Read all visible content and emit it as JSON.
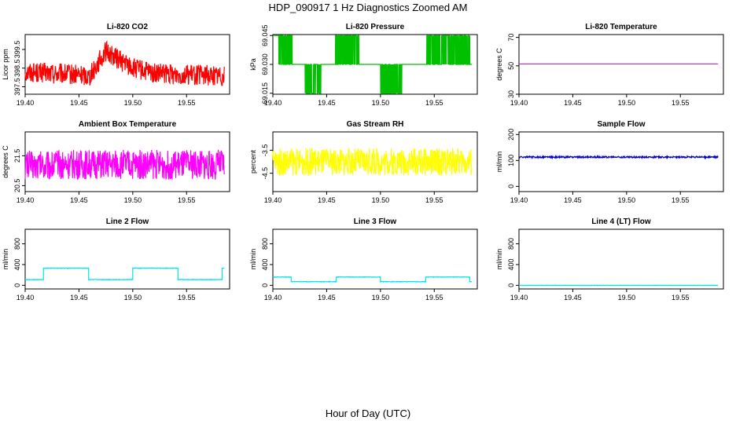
{
  "title": "HDP_090917  1 Hz Diagnostics Zoomed AM",
  "xlabel": "Hour of Day (UTC)",
  "chart_data": [
    {
      "type": "line",
      "title": "Li-820 CO2",
      "ylabel": "Licor ppm",
      "color": "#ff0000",
      "xlim": [
        19.4,
        19.59
      ],
      "ylim": [
        397.1,
        400.3
      ],
      "xticks": [
        "19.40",
        "19.45",
        "19.50",
        "19.55"
      ],
      "yticks": [
        "397.5",
        "398.5",
        "399.5"
      ],
      "series": {
        "x_range": [
          19.4,
          19.585
        ],
        "level_points": [
          [
            19.4,
            398.3
          ],
          [
            19.46,
            398.1
          ],
          [
            19.475,
            399.4
          ],
          [
            19.5,
            398.5
          ],
          [
            19.52,
            398.2
          ],
          [
            19.585,
            398.1
          ]
        ],
        "noise": 0.55,
        "style": "noisy"
      }
    },
    {
      "type": "line",
      "title": "Li-820 Pressure",
      "ylabel": "kPa",
      "color": "#00c000",
      "xlim": [
        19.4,
        19.59
      ],
      "ylim": [
        69.0145,
        69.0455
      ],
      "xticks": [
        "19.40",
        "19.45",
        "19.50",
        "19.55"
      ],
      "yticks": [
        "69.015",
        "69.030",
        "69.045"
      ],
      "series": {
        "x_range": [
          19.4,
          19.585
        ],
        "levels": [
          69.015,
          69.03,
          69.045
        ],
        "style": "flicker"
      }
    },
    {
      "type": "line",
      "title": "Li-820 Temperature",
      "ylabel": "degrees C",
      "color": "#ff00ff",
      "xlim": [
        19.4,
        19.59
      ],
      "ylim": [
        30,
        72
      ],
      "xticks": [
        "19.40",
        "19.45",
        "19.50",
        "19.55"
      ],
      "yticks": [
        "30",
        "50",
        "70"
      ],
      "series": {
        "x_range": [
          19.4,
          19.585
        ],
        "level_points": [
          [
            19.4,
            51.3
          ],
          [
            19.585,
            51.3
          ]
        ],
        "noise": 0,
        "style": "flat"
      }
    },
    {
      "type": "line",
      "title": "Ambient Box Temperature",
      "ylabel": "degrees C",
      "color": "#ff00ff",
      "xlim": [
        19.4,
        19.59
      ],
      "ylim": [
        20.3,
        22.3
      ],
      "xticks": [
        "19.40",
        "19.45",
        "19.50",
        "19.55"
      ],
      "yticks": [
        "20.5",
        "21.5"
      ],
      "series": {
        "x_range": [
          19.4,
          19.585
        ],
        "level_points": [
          [
            19.4,
            21.2
          ],
          [
            19.585,
            21.2
          ]
        ],
        "noise": 0.5,
        "style": "noisy"
      }
    },
    {
      "type": "line",
      "title": "Gas Stream RH",
      "ylabel": "percent",
      "color": "#ffff00",
      "xlim": [
        19.4,
        19.59
      ],
      "ylim": [
        -5.3,
        -2.7
      ],
      "xticks": [
        "19.40",
        "19.45",
        "19.50",
        "19.55"
      ],
      "yticks": [
        "-3.5",
        "-4.5"
      ],
      "series": {
        "x_range": [
          19.4,
          19.585
        ],
        "level_points": [
          [
            19.4,
            -4.0
          ],
          [
            19.585,
            -4.0
          ]
        ],
        "noise": 0.6,
        "style": "noisy"
      }
    },
    {
      "type": "line",
      "title": "Sample Flow",
      "ylabel": "ml/min",
      "color": "#0000cc",
      "xlim": [
        19.4,
        19.59
      ],
      "ylim": [
        -20,
        210
      ],
      "xticks": [
        "19.40",
        "19.45",
        "19.50",
        "19.55"
      ],
      "yticks": [
        "0",
        "100",
        "200"
      ],
      "series": {
        "x_range": [
          19.4,
          19.585
        ],
        "level_points": [
          [
            19.4,
            113
          ],
          [
            19.585,
            113
          ]
        ],
        "noise": 3,
        "style": "noisy"
      }
    },
    {
      "type": "line",
      "title": "Line 2 Flow",
      "ylabel": "ml/min",
      "color": "#00e5e5",
      "xlim": [
        19.4,
        19.59
      ],
      "ylim": [
        -70,
        1080
      ],
      "xticks": [
        "19.40",
        "19.45",
        "19.50",
        "19.55"
      ],
      "yticks": [
        "0",
        "400",
        "800"
      ],
      "series": {
        "x_range": [
          19.4,
          19.585
        ],
        "segments": [
          [
            19.4,
            19.417,
            110
          ],
          [
            19.417,
            19.459,
            330
          ],
          [
            19.459,
            19.5,
            110
          ],
          [
            19.5,
            19.542,
            330
          ],
          [
            19.542,
            19.583,
            110
          ],
          [
            19.583,
            19.585,
            330
          ]
        ],
        "noise": 5,
        "style": "steps"
      }
    },
    {
      "type": "line",
      "title": "Line 3 Flow",
      "ylabel": "ml/min",
      "color": "#00e5e5",
      "xlim": [
        19.4,
        19.59
      ],
      "ylim": [
        -70,
        1080
      ],
      "xticks": [
        "19.40",
        "19.45",
        "19.50",
        "19.55"
      ],
      "yticks": [
        "0",
        "400",
        "800"
      ],
      "series": {
        "x_range": [
          19.4,
          19.585
        ],
        "segments": [
          [
            19.4,
            19.417,
            160
          ],
          [
            19.417,
            19.459,
            70
          ],
          [
            19.459,
            19.5,
            160
          ],
          [
            19.5,
            19.542,
            70
          ],
          [
            19.542,
            19.583,
            160
          ],
          [
            19.583,
            19.585,
            70
          ]
        ],
        "noise": 5,
        "style": "steps"
      }
    },
    {
      "type": "line",
      "title": "Line 4 (LT) Flow",
      "ylabel": "ml/min",
      "color": "#00e5e5",
      "xlim": [
        19.4,
        19.59
      ],
      "ylim": [
        -70,
        1080
      ],
      "xticks": [
        "19.40",
        "19.45",
        "19.50",
        "19.55"
      ],
      "yticks": [
        "0",
        "400",
        "800"
      ],
      "series": {
        "x_range": [
          19.4,
          19.585
        ],
        "level_points": [
          [
            19.4,
            -2
          ],
          [
            19.585,
            -2
          ]
        ],
        "noise": 3,
        "style": "noisy"
      }
    }
  ]
}
